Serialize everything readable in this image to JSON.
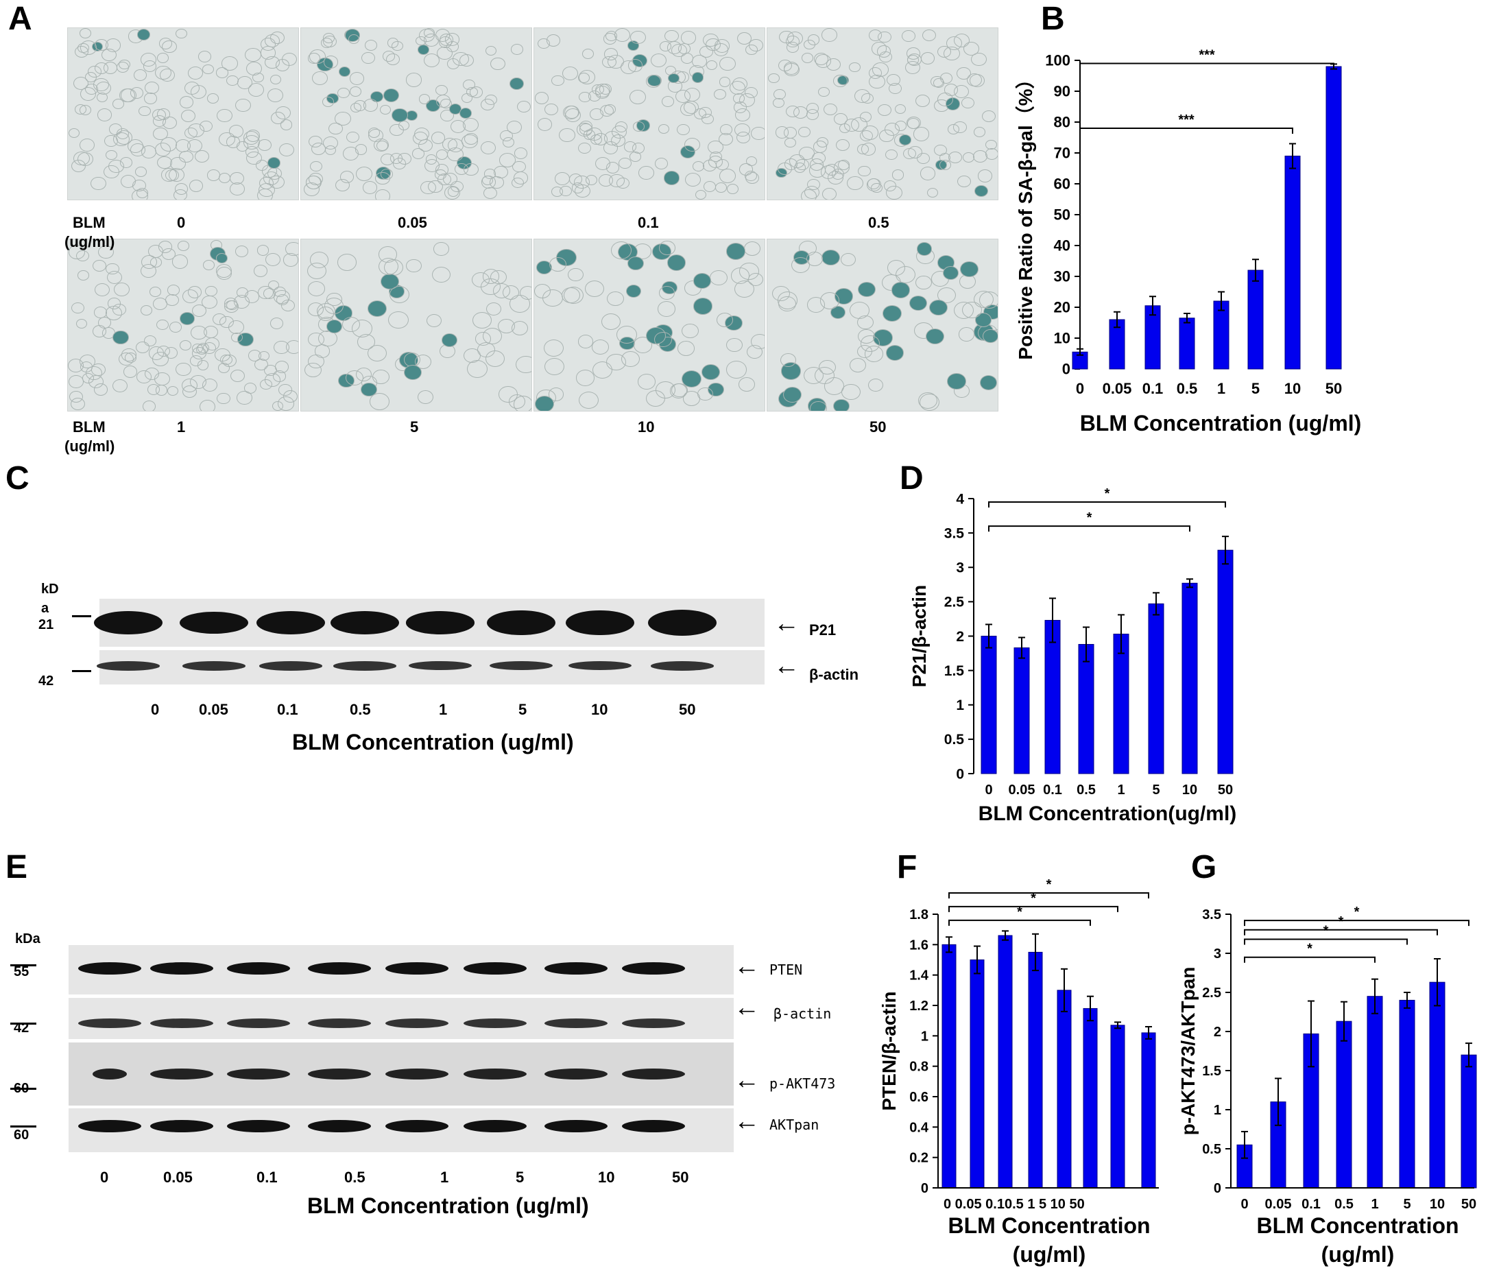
{
  "panel_labels": {
    "A": "A",
    "B": "B",
    "C": "C",
    "D": "D",
    "E": "E",
    "F": "F",
    "G": "G"
  },
  "panelA": {
    "row_label": "BLM",
    "row_unit": "(ug/ml)",
    "row1": [
      "0",
      "0.05",
      "0.1",
      "0.5"
    ],
    "row2": [
      "1",
      "5",
      "10",
      "50"
    ]
  },
  "panelC": {
    "kda_label": "kD",
    "kda_sub": "a",
    "marker_top": "21",
    "marker_bottom": "42",
    "band_labels": [
      "P21",
      "β-actin"
    ],
    "lanes": [
      "0",
      "0.05",
      "0.1",
      "0.5",
      "1",
      "5",
      "10",
      "50"
    ],
    "xlabel": "BLM Concentration (ug/ml)",
    "band_intensity_p21": [
      0.75,
      0.6,
      0.72,
      0.72,
      0.65,
      0.9,
      0.92,
      1.0
    ],
    "band_intensity_actin": [
      0.6,
      0.6,
      0.6,
      0.6,
      0.55,
      0.5,
      0.5,
      0.6
    ]
  },
  "panelE": {
    "kda_label": "kDa",
    "markers": [
      "55",
      "42",
      "60",
      "60"
    ],
    "band_labels": [
      "PTEN",
      "β-actin",
      "p-AKT473",
      "AKTpan"
    ],
    "lanes": [
      "0",
      "0.05",
      "0.1",
      "0.5",
      "1",
      "5",
      "10",
      "50"
    ],
    "xlabel": "BLM Concentration (ug/ml)"
  },
  "chart_data": [
    {
      "id": "B",
      "type": "bar",
      "categories": [
        "0",
        "0.05",
        "0.1",
        "0.5",
        "1",
        "5",
        "10",
        "50"
      ],
      "values": [
        5.5,
        16,
        20.5,
        16.5,
        22,
        32,
        69,
        98
      ],
      "errors": [
        1,
        2.5,
        3,
        1.5,
        3,
        3.5,
        4,
        0.8
      ],
      "ylim": [
        0,
        100
      ],
      "yticks": [
        0,
        10,
        20,
        30,
        40,
        50,
        60,
        70,
        80,
        90,
        100
      ],
      "xlabel": "BLM Concentration (ug/ml)",
      "ylabel": "Positive Ratio of SA-β-gal（%）",
      "significance": [
        {
          "from": 0,
          "to": 6,
          "label": "***"
        },
        {
          "from": 0,
          "to": 7,
          "label": "***"
        }
      ]
    },
    {
      "id": "D",
      "type": "bar",
      "categories": [
        "0",
        "0.05",
        "0.1",
        "0.5",
        "1",
        "5",
        "10",
        "50"
      ],
      "values": [
        2.0,
        1.83,
        2.23,
        1.88,
        2.03,
        2.47,
        2.77,
        3.25
      ],
      "errors": [
        0.17,
        0.15,
        0.32,
        0.25,
        0.28,
        0.16,
        0.06,
        0.2
      ],
      "ylim": [
        0,
        4
      ],
      "yticks": [
        "0",
        "0.5",
        "1",
        "1.5",
        "2",
        "2.5",
        "3",
        "3.5",
        "4"
      ],
      "xlabel": "BLM Concentration(ug/ml)",
      "ylabel": "P21/β-actin",
      "significance": [
        {
          "from": 0,
          "to": 6,
          "label": "*"
        },
        {
          "from": 0,
          "to": 7,
          "label": "*"
        }
      ]
    },
    {
      "id": "F",
      "type": "bar",
      "categories": [
        "0",
        "0.05",
        "0.1",
        "0.5",
        "1",
        "5",
        "10",
        "50"
      ],
      "x_tick_text": "0 0.05 0.10.5  1    5  10  50",
      "values": [
        1.6,
        1.5,
        1.66,
        1.55,
        1.3,
        1.18,
        1.07,
        1.02
      ],
      "errors": [
        0.05,
        0.09,
        0.03,
        0.12,
        0.14,
        0.08,
        0.02,
        0.04
      ],
      "ylim": [
        0,
        1.8
      ],
      "yticks": [
        "0",
        "0.2",
        "0.4",
        "0.6",
        "0.8",
        "1",
        "1.2",
        "1.4",
        "1.6",
        "1.8"
      ],
      "xlabel": "BLM Concentration",
      "xlabel2": "(ug/ml)",
      "ylabel": "PTEN/β-actin",
      "significance": [
        {
          "from": 0,
          "to": 5,
          "label": "*"
        },
        {
          "from": 0,
          "to": 6,
          "label": "*"
        },
        {
          "from": 0,
          "to": 7,
          "label": "*"
        }
      ]
    },
    {
      "id": "G",
      "type": "bar",
      "categories": [
        "0",
        "0.05",
        "0.1",
        "0.5",
        "1",
        "5",
        "10",
        "50"
      ],
      "values": [
        0.55,
        1.1,
        1.97,
        2.13,
        2.45,
        2.4,
        2.63,
        1.7
      ],
      "errors": [
        0.17,
        0.3,
        0.42,
        0.25,
        0.22,
        0.1,
        0.3,
        0.15
      ],
      "ylim": [
        0,
        3.5
      ],
      "yticks": [
        "0",
        "0.5",
        "1",
        "1.5",
        "2",
        "2.5",
        "3",
        "3.5"
      ],
      "xlabel": "BLM Concentration",
      "xlabel2": "(ug/ml)",
      "ylabel": "p-AKT473/AKTpan",
      "significance": [
        {
          "from": 0,
          "to": 4,
          "label": "*"
        },
        {
          "from": 0,
          "to": 5,
          "label": "*"
        },
        {
          "from": 0,
          "to": 6,
          "label": "*"
        },
        {
          "from": 0,
          "to": 7,
          "label": "*"
        }
      ]
    }
  ],
  "colors": {
    "bar": "#0000ee",
    "bar_edge": "#000080",
    "stain": "#4a8a8a"
  }
}
